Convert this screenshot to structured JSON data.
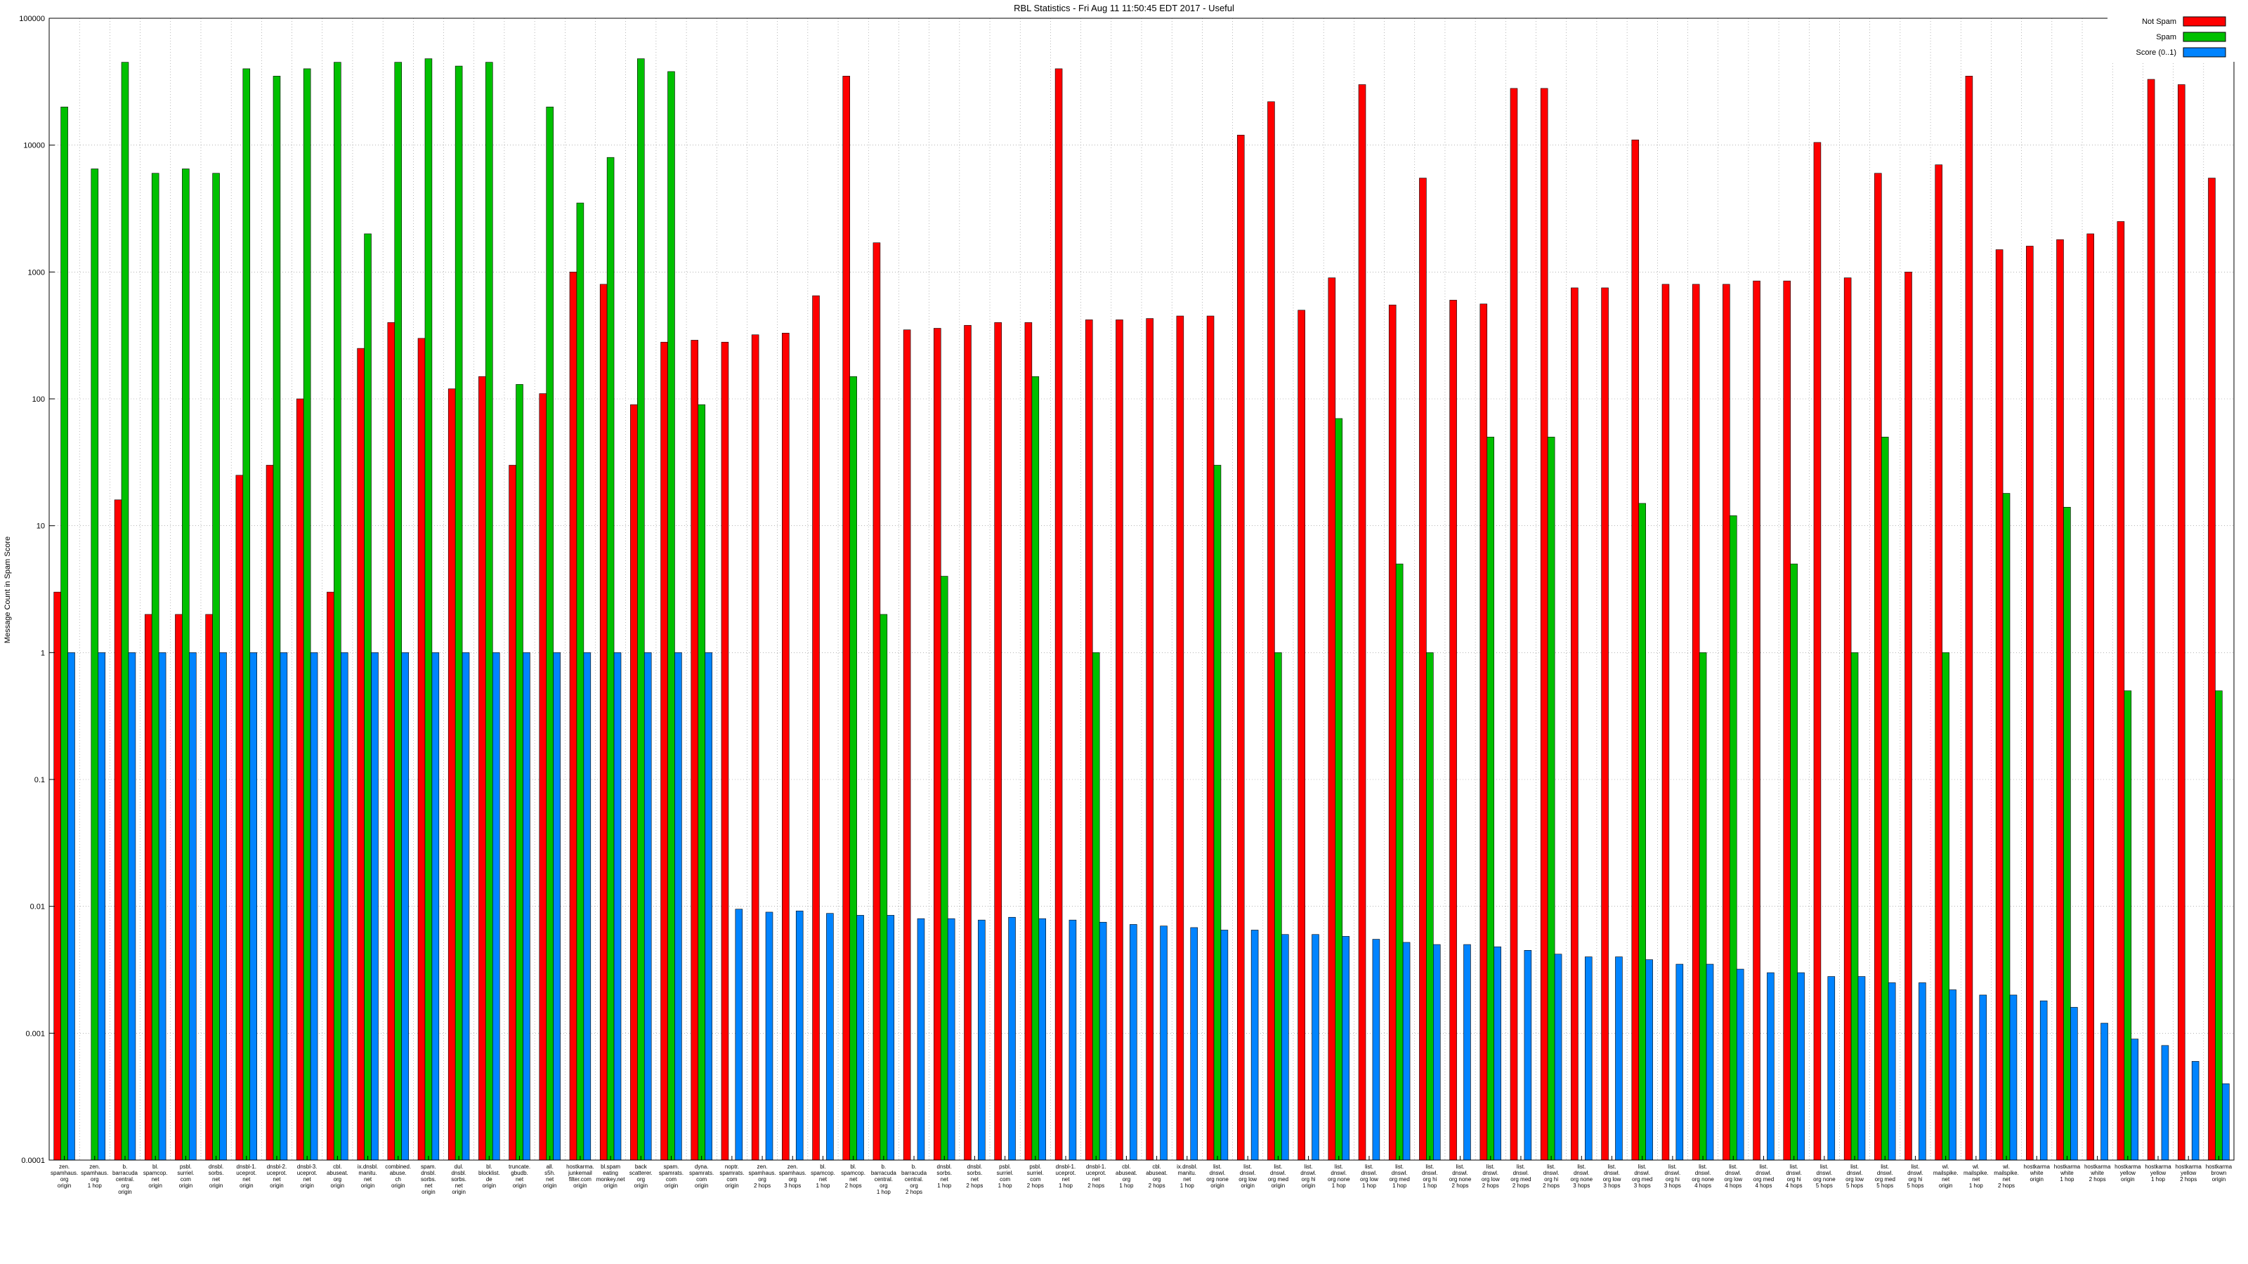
{
  "title": "RBL Statistics - Fri Aug 11 11:50:45 EDT 2017 - Useful",
  "ylabel": "Message Count in Spam Score",
  "legend": [
    {
      "label": "Not Spam",
      "color": "#ff0000"
    },
    {
      "label": "Spam",
      "color": "#00c000"
    },
    {
      "label": "Score (0..1)",
      "color": "#0084ff"
    }
  ],
  "colors": {
    "grid": "#888888",
    "border": "#000000",
    "background": "#ffffff",
    "bar_outline": "#000000"
  },
  "chart_data": {
    "type": "bar",
    "scale": "log",
    "title": "RBL Statistics - Fri Aug 11 11:50:45 EDT 2017 - Useful",
    "xlabel": "",
    "ylabel": "Message Count in Spam Score",
    "ylim": [
      0.0001,
      100000
    ],
    "yticks": [
      100000,
      10000,
      1000,
      100,
      10,
      1,
      0.1,
      0.01,
      0.001,
      0.0001
    ],
    "grid": true,
    "legend_position": "top-right",
    "categories": [
      [
        "zen.",
        "spamhaus.",
        "org",
        "origin"
      ],
      [
        "zen.",
        "spamhaus.",
        "org",
        "1 hop"
      ],
      [
        "b.",
        "barracuda",
        "central.",
        "org",
        "origin"
      ],
      [
        "bl.",
        "spamcop.",
        "net",
        "origin"
      ],
      [
        "psbl.",
        "surriel.",
        "com",
        "origin"
      ],
      [
        "dnsbl.",
        "sorbs.",
        "net",
        "origin"
      ],
      [
        "dnsbl-1.",
        "uceprot.",
        "net",
        "origin"
      ],
      [
        "dnsbl-2.",
        "uceprot.",
        "net",
        "origin"
      ],
      [
        "dnsbl-3.",
        "uceprot.",
        "net",
        "origin"
      ],
      [
        "cbl.",
        "abuseat.",
        "org",
        "origin"
      ],
      [
        "ix.dnsbl.",
        "manitu.",
        "net",
        "origin"
      ],
      [
        "combined.",
        "abuse.",
        "ch",
        "origin"
      ],
      [
        "spam.",
        "dnsbl.",
        "sorbs.",
        "net",
        "origin"
      ],
      [
        "dul.",
        "dnsbl.",
        "sorbs.",
        "net",
        "origin"
      ],
      [
        "bl.",
        "blocklist.",
        "de",
        "origin"
      ],
      [
        "truncate.",
        "gbudb.",
        "net",
        "origin"
      ],
      [
        "all.",
        "s5h.",
        "net",
        "origin"
      ],
      [
        "hostkarma.",
        "junkemail",
        "filter.com",
        "origin"
      ],
      [
        "bl.spam",
        "eating",
        "monkey.net",
        "origin"
      ],
      [
        "back",
        "scatterer.",
        "org",
        "origin"
      ],
      [
        "spam.",
        "spamrats.",
        "com",
        "origin"
      ],
      [
        "dyna.",
        "spamrats.",
        "com",
        "origin"
      ],
      [
        "noptr.",
        "spamrats.",
        "com",
        "origin"
      ],
      [
        "zen.",
        "spamhaus.",
        "org",
        "2 hops"
      ],
      [
        "zen.",
        "spamhaus.",
        "org",
        "3 hops"
      ],
      [
        "bl.",
        "spamcop.",
        "net",
        "1 hop"
      ],
      [
        "bl.",
        "spamcop.",
        "net",
        "2 hops"
      ],
      [
        "b.",
        "barracuda",
        "central.",
        "org",
        "1 hop"
      ],
      [
        "b.",
        "barracuda",
        "central.",
        "org",
        "2 hops"
      ],
      [
        "dnsbl.",
        "sorbs.",
        "net",
        "1 hop"
      ],
      [
        "dnsbl.",
        "sorbs.",
        "net",
        "2 hops"
      ],
      [
        "psbl.",
        "surriel.",
        "com",
        "1 hop"
      ],
      [
        "psbl.",
        "surriel.",
        "com",
        "2 hops"
      ],
      [
        "dnsbl-1.",
        "uceprot.",
        "net",
        "1 hop"
      ],
      [
        "dnsbl-1.",
        "uceprot.",
        "net",
        "2 hops"
      ],
      [
        "cbl.",
        "abuseat.",
        "org",
        "1 hop"
      ],
      [
        "cbl.",
        "abuseat.",
        "org",
        "2 hops"
      ],
      [
        "ix.dnsbl.",
        "manitu.",
        "net",
        "1 hop"
      ],
      [
        "list.",
        "dnswl.",
        "org none",
        "origin"
      ],
      [
        "list.",
        "dnswl.",
        "org low",
        "origin"
      ],
      [
        "list.",
        "dnswl.",
        "org med",
        "origin"
      ],
      [
        "list.",
        "dnswl.",
        "org hi",
        "origin"
      ],
      [
        "list.",
        "dnswl.",
        "org none",
        "1 hop"
      ],
      [
        "list.",
        "dnswl.",
        "org low",
        "1 hop"
      ],
      [
        "list.",
        "dnswl.",
        "org med",
        "1 hop"
      ],
      [
        "list.",
        "dnswl.",
        "org hi",
        "1 hop"
      ],
      [
        "list.",
        "dnswl.",
        "org none",
        "2 hops"
      ],
      [
        "list.",
        "dnswl.",
        "org low",
        "2 hops"
      ],
      [
        "list.",
        "dnswl.",
        "org med",
        "2 hops"
      ],
      [
        "list.",
        "dnswl.",
        "org hi",
        "2 hops"
      ],
      [
        "list.",
        "dnswl.",
        "org none",
        "3 hops"
      ],
      [
        "list.",
        "dnswl.",
        "org low",
        "3 hops"
      ],
      [
        "list.",
        "dnswl.",
        "org med",
        "3 hops"
      ],
      [
        "list.",
        "dnswl.",
        "org hi",
        "3 hops"
      ],
      [
        "list.",
        "dnswl.",
        "org none",
        "4 hops"
      ],
      [
        "list.",
        "dnswl.",
        "org low",
        "4 hops"
      ],
      [
        "list.",
        "dnswl.",
        "org med",
        "4 hops"
      ],
      [
        "list.",
        "dnswl.",
        "org hi",
        "4 hops"
      ],
      [
        "list.",
        "dnswl.",
        "org none",
        "5 hops"
      ],
      [
        "list.",
        "dnswl.",
        "org low",
        "5 hops"
      ],
      [
        "list.",
        "dnswl.",
        "org med",
        "5 hops"
      ],
      [
        "list.",
        "dnswl.",
        "org hi",
        "5 hops"
      ],
      [
        "wl.",
        "mailspike.",
        "net",
        "origin"
      ],
      [
        "wl.",
        "mailspike.",
        "net",
        "1 hop"
      ],
      [
        "wl.",
        "mailspike.",
        "net",
        "2 hops"
      ],
      [
        "hostkarma",
        "white",
        "origin"
      ],
      [
        "hostkarma",
        "white",
        "1 hop"
      ],
      [
        "hostkarma",
        "white",
        "2 hops"
      ],
      [
        "hostkarma",
        "yellow",
        "origin"
      ],
      [
        "hostkarma",
        "yellow",
        "1 hop"
      ],
      [
        "hostkarma",
        "yellow",
        "2 hops"
      ],
      [
        "hostkarma",
        "brown",
        "origin"
      ]
    ],
    "series": [
      {
        "name": "Not Spam",
        "color": "#ff0000",
        "values": [
          3,
          0,
          16,
          2,
          2,
          2,
          25,
          30,
          100,
          3,
          250,
          400,
          300,
          120,
          150,
          30,
          110,
          1000,
          800,
          90,
          280,
          290,
          280,
          320,
          330,
          650,
          35000,
          1700,
          350,
          360,
          380,
          400,
          400,
          40000,
          420,
          420,
          430,
          450,
          450,
          12000,
          22000,
          500,
          900,
          30000,
          550,
          5500,
          600,
          560,
          28000,
          28000,
          750,
          750,
          11000,
          800,
          800,
          800,
          850,
          850,
          10500,
          900,
          6000,
          1000,
          7000,
          35000,
          1500,
          1600,
          1800,
          2000,
          2500,
          33000,
          30000,
          5500
        ]
      },
      {
        "name": "Spam",
        "color": "#00c000",
        "values": [
          20000,
          6500,
          45000,
          6000,
          6500,
          6000,
          40000,
          35000,
          40000,
          45000,
          2000,
          45000,
          48000,
          42000,
          45000,
          130,
          20000,
          3500,
          8000,
          48000,
          38000,
          90,
          0,
          0,
          0,
          0,
          150,
          2,
          0,
          4,
          0,
          0,
          150,
          0,
          1,
          0,
          0,
          0,
          30,
          0,
          1,
          0,
          70,
          0,
          5,
          1,
          0,
          50,
          0,
          50,
          0,
          0,
          15,
          0,
          1,
          12,
          0,
          5,
          0,
          1,
          50,
          0,
          1,
          0,
          18,
          0,
          14,
          0,
          0.5,
          0,
          0,
          0.5
        ]
      },
      {
        "name": "Score (0..1)",
        "color": "#0084ff",
        "values": [
          1,
          1,
          1,
          1,
          1,
          1,
          1,
          1,
          1,
          1,
          1,
          1,
          1,
          1,
          1,
          1,
          1,
          1,
          1,
          1,
          1,
          1,
          0.0095,
          0.009,
          0.0092,
          0.0088,
          0.0085,
          0.0085,
          0.008,
          0.008,
          0.0078,
          0.0082,
          0.008,
          0.0078,
          0.0075,
          0.0072,
          0.007,
          0.0068,
          0.0065,
          0.0065,
          0.006,
          0.006,
          0.0058,
          0.0055,
          0.0052,
          0.005,
          0.005,
          0.0048,
          0.0045,
          0.0042,
          0.004,
          0.004,
          0.0038,
          0.0035,
          0.0035,
          0.0032,
          0.003,
          0.003,
          0.0028,
          0.0028,
          0.0025,
          0.0025,
          0.0022,
          0.002,
          0.002,
          0.0018,
          0.0016,
          0.0012,
          0.0009,
          0.0008,
          0.0006,
          0.0004
        ]
      }
    ]
  }
}
